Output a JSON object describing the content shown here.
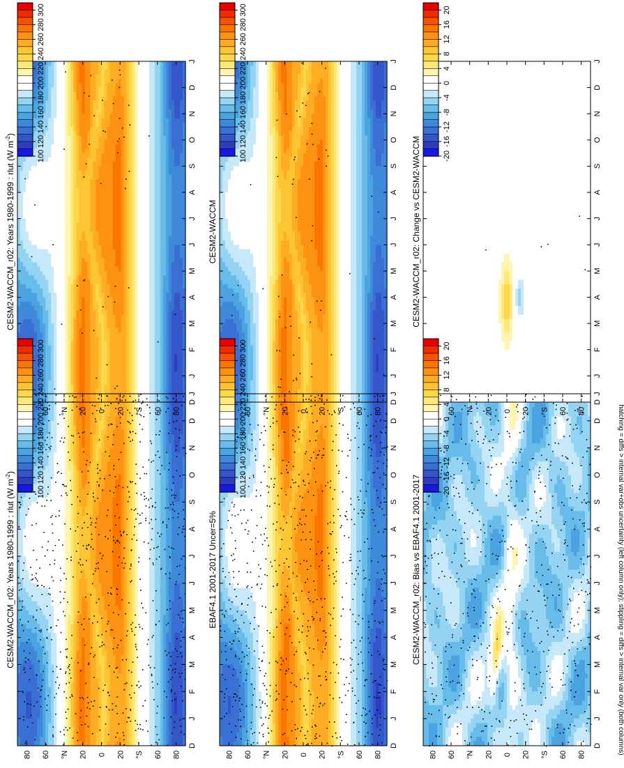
{
  "figure": {
    "orientation": "rotated 90 degrees clockwise",
    "footnote": "hatching = diffs > internal var+obs uncertainty (left column only); stippling = diffs > internal var only (both columns)"
  },
  "colors": {
    "abs_scale": [
      "#e60000",
      "#ee2c00",
      "#f55300",
      "#fb7600",
      "#fd9212",
      "#fdac24",
      "#fdc434",
      "#fdd84d",
      "#fde97a",
      "#fdf5b0",
      "#ffffff",
      "#ffffff",
      "#c6e8f8",
      "#95d3f3",
      "#68bce9",
      "#4ba4e1",
      "#3f89da",
      "#3a6fd3",
      "#3556cb",
      "#2f3bc0",
      "#1818e6"
    ],
    "diff_scale": [
      "#e60000",
      "#ee2c00",
      "#f55300",
      "#fb7600",
      "#fd9212",
      "#fdac24",
      "#fdc434",
      "#fdd84d",
      "#fde97a",
      "#fdf5b0",
      "#ffffff",
      "#ffffff",
      "#c6e8f8",
      "#95d3f3",
      "#68bce9",
      "#4ba4e1",
      "#3f89da",
      "#3a6fd3",
      "#3556cb",
      "#2f3bc0",
      "#1818e6"
    ]
  },
  "colorbars": {
    "abs_labels": [
      "300",
      "280",
      "260",
      "240",
      "220",
      "200",
      "180",
      "160",
      "140",
      "120",
      "100"
    ],
    "diff_labels": [
      "20",
      "16",
      "12",
      "8",
      "4",
      "0",
      "-4",
      "-8",
      "-12",
      "-16",
      "-20"
    ]
  },
  "axes": {
    "lat_labels": [
      "80",
      "60",
      "°N",
      "20",
      "0",
      "20",
      "°S",
      "60",
      "80"
    ],
    "month_labels": [
      "D",
      "J",
      "F",
      "M",
      "A",
      "M",
      "J",
      "J",
      "A",
      "S",
      "O",
      "N",
      "D",
      "J"
    ]
  },
  "panels": [
    {
      "id": "model-abs-left",
      "title": "CESM2-WACCM_r02: Years 1980-1999 : rlut (W m",
      "title_sup": "-2",
      "title_tail": ")",
      "field": "abs",
      "hatch": "dense"
    },
    {
      "id": "obs-abs",
      "title": "EBAF4.1 2001-2017 Uncer=5%",
      "title_sup": "",
      "title_tail": "",
      "field": "abs",
      "hatch": "dense"
    },
    {
      "id": "bias",
      "title": "CESM2-WACCM_r02: Bias vs EBAF4.1 2001-2017",
      "title_sup": "",
      "title_tail": "",
      "field": "bias",
      "hatch": "medium"
    },
    {
      "id": "model-abs-right",
      "title": "CESM2-WACCM_r02: Years 1980-1999 : rlut (W m",
      "title_sup": "-2",
      "title_tail": ")",
      "field": "abs",
      "hatch": "sparse"
    },
    {
      "id": "model-abs-right-2",
      "title": "CESM2-WACCM",
      "title_sup": "",
      "title_tail": "",
      "field": "abs",
      "hatch": "sparse"
    },
    {
      "id": "change",
      "title": "CESM2-WACCM_r02: Change vs CESM2-WACCM",
      "title_sup": "",
      "title_tail": "",
      "field": "change",
      "hatch": "few"
    }
  ],
  "chart_data": {
    "type": "heatmap",
    "variable": "rlut",
    "units": "W m^-2",
    "x_dim": "month",
    "x_range": [
      0,
      13
    ],
    "y_dim": "latitude",
    "y_range": [
      -90,
      90
    ],
    "abs_levels": [
      100,
      110,
      120,
      130,
      140,
      150,
      160,
      170,
      180,
      190,
      200,
      210,
      220,
      230,
      240,
      250,
      260,
      270,
      280,
      290,
      300
    ],
    "diff_levels": [
      -20,
      -18,
      -16,
      -14,
      -12,
      -10,
      -8,
      -6,
      -4,
      -2,
      0,
      2,
      4,
      6,
      8,
      10,
      12,
      14,
      16,
      18,
      20
    ],
    "panels": [
      "model-abs-left",
      "obs-abs",
      "bias",
      "model-abs-right",
      "model-abs-right-2",
      "change"
    ]
  }
}
